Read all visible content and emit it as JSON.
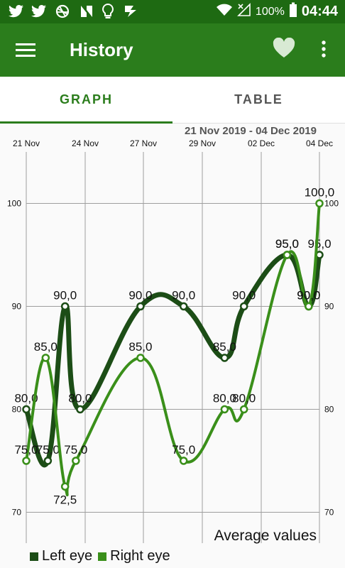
{
  "status_bar": {
    "battery": "100%",
    "time": "04:44"
  },
  "app_bar": {
    "title": "History"
  },
  "tabs": [
    {
      "label": "GRAPH",
      "selected": true
    },
    {
      "label": "TABLE",
      "selected": false
    }
  ],
  "date_range": "21 Nov 2019 - 04 Dec 2019",
  "chart_footer": "Average values",
  "colors": {
    "status_bar": "#1e6a12",
    "app_bar": "#2b7d1c",
    "left_eye": "#1c4d16",
    "right_eye": "#3a8f1a"
  },
  "chart_data": {
    "type": "line",
    "x_tick_labels": [
      "21 Nov",
      "24 Nov",
      "27 Nov",
      "29 Nov",
      "02 Dec",
      "04 Dec"
    ],
    "y_ticks": [
      70,
      80,
      90,
      100
    ],
    "y_tick_labels": [
      "70",
      "80",
      "90",
      "100"
    ],
    "ylim": [
      67,
      105
    ],
    "grid": true,
    "legend_placement": "bottom-left",
    "x": [
      21.0,
      22.0,
      22.8,
      23.5,
      26.3,
      28.3,
      30.2,
      31.1,
      33.1,
      34.1
    ],
    "series": [
      {
        "name": "Left eye",
        "values": [
          80.0,
          75.0,
          90.0,
          80.0,
          90.0,
          90.0,
          85.0,
          90.0,
          95.0,
          90.0,
          95.0
        ],
        "labels": [
          "80,0",
          "75,0",
          "90,0",
          "80,0",
          "90,0",
          "90,0",
          "85,0",
          "90,0",
          "95,0",
          "90,0",
          "95,0"
        ],
        "x": [
          21.0,
          22.0,
          22.8,
          23.5,
          26.3,
          28.3,
          30.2,
          31.1,
          33.1,
          34.1,
          34.6
        ]
      },
      {
        "name": "Right eye",
        "values": [
          75.0,
          85.0,
          72.5,
          75.0,
          85.0,
          75.0,
          80.0,
          80.0,
          95.0,
          90.0,
          100.0
        ],
        "labels": [
          "75,0",
          "85,0",
          "72,5",
          "75,0",
          "85,0",
          "75,0",
          "80,0",
          "80,0",
          "95,0",
          "90,0",
          "100,0"
        ],
        "x": [
          21.0,
          21.9,
          22.8,
          23.3,
          26.3,
          28.3,
          30.2,
          31.1,
          33.1,
          34.1,
          34.6
        ]
      }
    ]
  }
}
